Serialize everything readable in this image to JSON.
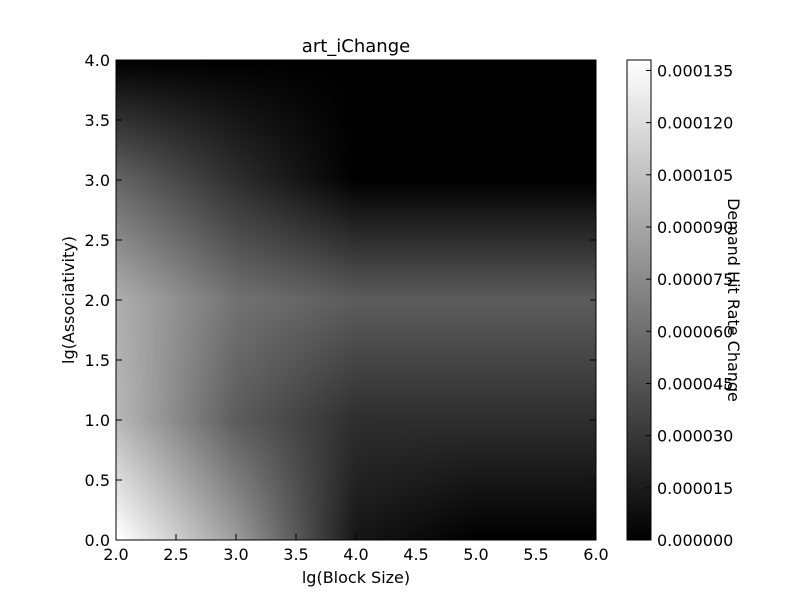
{
  "chart_data": {
    "type": "heatmap",
    "title": "art_iChange",
    "xlabel": "lg(Block Size)",
    "ylabel": "lg(Associativity)",
    "colorbar_label": "Demand Hit Rate Change",
    "colormap": "gray",
    "colormap_colors": [
      "#000000",
      "#ffffff"
    ],
    "interpolation": "bilinear",
    "xlim": [
      2.0,
      6.0
    ],
    "ylim": [
      0.0,
      4.0
    ],
    "x": [
      2,
      3,
      4,
      5,
      6
    ],
    "y": [
      0,
      1,
      2,
      3,
      4
    ],
    "z_rows_by_y": [
      [
        0.00014,
        8.5e-05,
        1.2e-05,
        0.0,
        0.0
      ],
      [
        0.0001,
        5e-05,
        2.5e-05,
        2.5e-05,
        2.5e-05
      ],
      [
        9.5e-05,
        6.2e-05,
        5e-05,
        5e-05,
        5e-05
      ],
      [
        5.5e-05,
        2.5e-05,
        0.0,
        0.0,
        0.0
      ],
      [
        0.0,
        0.0,
        0.0,
        0.0,
        0.0
      ]
    ],
    "clim": [
      0.0,
      0.000138
    ],
    "xticks": [
      "2.0",
      "2.5",
      "3.0",
      "3.5",
      "4.0",
      "4.5",
      "5.0",
      "5.5",
      "6.0"
    ],
    "yticks": [
      "0.0",
      "0.5",
      "1.0",
      "1.5",
      "2.0",
      "2.5",
      "3.0",
      "3.5",
      "4.0"
    ],
    "colorbar_ticks": [
      "0.000000",
      "0.000015",
      "0.000030",
      "0.000045",
      "0.000060",
      "0.000075",
      "0.000090",
      "0.000105",
      "0.000120",
      "0.000135"
    ]
  }
}
